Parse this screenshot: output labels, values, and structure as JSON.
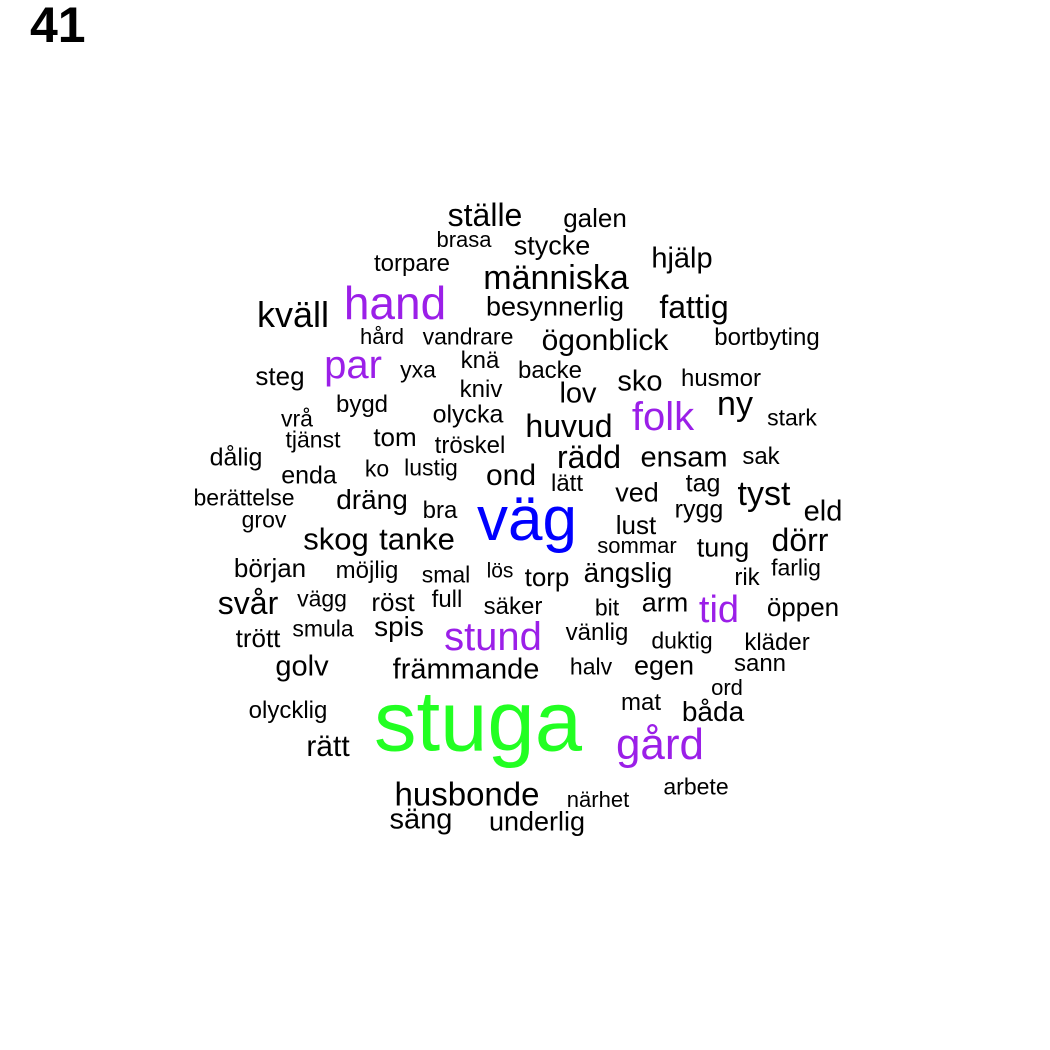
{
  "page_number": "41",
  "colors": {
    "default": "#000000",
    "purple": "#9b1fe8",
    "blue": "#0000ff",
    "green": "#22ff22"
  },
  "words": [
    {
      "text": "ställe",
      "tone": "default"
    },
    {
      "text": "galen",
      "tone": "default"
    },
    {
      "text": "brasa",
      "tone": "default"
    },
    {
      "text": "stycke",
      "tone": "default"
    },
    {
      "text": "torpare",
      "tone": "default"
    },
    {
      "text": "människa",
      "tone": "default"
    },
    {
      "text": "hjälp",
      "tone": "default"
    },
    {
      "text": "kväll",
      "tone": "default"
    },
    {
      "text": "hand",
      "tone": "purple"
    },
    {
      "text": "besynnerlig",
      "tone": "default"
    },
    {
      "text": "fattig",
      "tone": "default"
    },
    {
      "text": "hård",
      "tone": "default"
    },
    {
      "text": "vandrare",
      "tone": "default"
    },
    {
      "text": "ögonblick",
      "tone": "default"
    },
    {
      "text": "bortbyting",
      "tone": "default"
    },
    {
      "text": "steg",
      "tone": "default"
    },
    {
      "text": "par",
      "tone": "purple"
    },
    {
      "text": "yxa",
      "tone": "default"
    },
    {
      "text": "knä",
      "tone": "default"
    },
    {
      "text": "backe",
      "tone": "default"
    },
    {
      "text": "kniv",
      "tone": "default"
    },
    {
      "text": "lov",
      "tone": "default"
    },
    {
      "text": "sko",
      "tone": "default"
    },
    {
      "text": "husmor",
      "tone": "default"
    },
    {
      "text": "bygd",
      "tone": "default"
    },
    {
      "text": "vrå",
      "tone": "default"
    },
    {
      "text": "olycka",
      "tone": "default"
    },
    {
      "text": "folk",
      "tone": "purple"
    },
    {
      "text": "ny",
      "tone": "default"
    },
    {
      "text": "stark",
      "tone": "default"
    },
    {
      "text": "tjänst",
      "tone": "default"
    },
    {
      "text": "tom",
      "tone": "default"
    },
    {
      "text": "tröskel",
      "tone": "default"
    },
    {
      "text": "huvud",
      "tone": "default"
    },
    {
      "text": "dålig",
      "tone": "default"
    },
    {
      "text": "rädd",
      "tone": "default"
    },
    {
      "text": "ensam",
      "tone": "default"
    },
    {
      "text": "sak",
      "tone": "default"
    },
    {
      "text": "enda",
      "tone": "default"
    },
    {
      "text": "ko",
      "tone": "default"
    },
    {
      "text": "lustig",
      "tone": "default"
    },
    {
      "text": "ond",
      "tone": "default"
    },
    {
      "text": "lätt",
      "tone": "default"
    },
    {
      "text": "tag",
      "tone": "default"
    },
    {
      "text": "berättelse",
      "tone": "default"
    },
    {
      "text": "dräng",
      "tone": "default"
    },
    {
      "text": "ved",
      "tone": "default"
    },
    {
      "text": "tyst",
      "tone": "default"
    },
    {
      "text": "grov",
      "tone": "default"
    },
    {
      "text": "bra",
      "tone": "default"
    },
    {
      "text": "väg",
      "tone": "blue"
    },
    {
      "text": "rygg",
      "tone": "default"
    },
    {
      "text": "eld",
      "tone": "default"
    },
    {
      "text": "skog",
      "tone": "default"
    },
    {
      "text": "tanke",
      "tone": "default"
    },
    {
      "text": "lust",
      "tone": "default"
    },
    {
      "text": "sommar",
      "tone": "default"
    },
    {
      "text": "tung",
      "tone": "default"
    },
    {
      "text": "dörr",
      "tone": "default"
    },
    {
      "text": "början",
      "tone": "default"
    },
    {
      "text": "möjlig",
      "tone": "default"
    },
    {
      "text": "smal",
      "tone": "default"
    },
    {
      "text": "lös",
      "tone": "default"
    },
    {
      "text": "torp",
      "tone": "default"
    },
    {
      "text": "ängslig",
      "tone": "default"
    },
    {
      "text": "rik",
      "tone": "default"
    },
    {
      "text": "farlig",
      "tone": "default"
    },
    {
      "text": "svår",
      "tone": "default"
    },
    {
      "text": "vägg",
      "tone": "default"
    },
    {
      "text": "röst",
      "tone": "default"
    },
    {
      "text": "full",
      "tone": "default"
    },
    {
      "text": "säker",
      "tone": "default"
    },
    {
      "text": "bit",
      "tone": "default"
    },
    {
      "text": "arm",
      "tone": "default"
    },
    {
      "text": "tid",
      "tone": "purple"
    },
    {
      "text": "öppen",
      "tone": "default"
    },
    {
      "text": "trött",
      "tone": "default"
    },
    {
      "text": "smula",
      "tone": "default"
    },
    {
      "text": "spis",
      "tone": "default"
    },
    {
      "text": "stund",
      "tone": "purple"
    },
    {
      "text": "vänlig",
      "tone": "default"
    },
    {
      "text": "duktig",
      "tone": "default"
    },
    {
      "text": "kläder",
      "tone": "default"
    },
    {
      "text": "golv",
      "tone": "default"
    },
    {
      "text": "främmande",
      "tone": "default"
    },
    {
      "text": "halv",
      "tone": "default"
    },
    {
      "text": "egen",
      "tone": "default"
    },
    {
      "text": "sann",
      "tone": "default"
    },
    {
      "text": "ord",
      "tone": "default"
    },
    {
      "text": "olycklig",
      "tone": "default"
    },
    {
      "text": "stuga",
      "tone": "green"
    },
    {
      "text": "mat",
      "tone": "default"
    },
    {
      "text": "båda",
      "tone": "default"
    },
    {
      "text": "rätt",
      "tone": "default"
    },
    {
      "text": "gård",
      "tone": "purple"
    },
    {
      "text": "arbete",
      "tone": "default"
    },
    {
      "text": "husbonde",
      "tone": "default"
    },
    {
      "text": "närhet",
      "tone": "default"
    },
    {
      "text": "säng",
      "tone": "default"
    },
    {
      "text": "underlig",
      "tone": "default"
    }
  ]
}
